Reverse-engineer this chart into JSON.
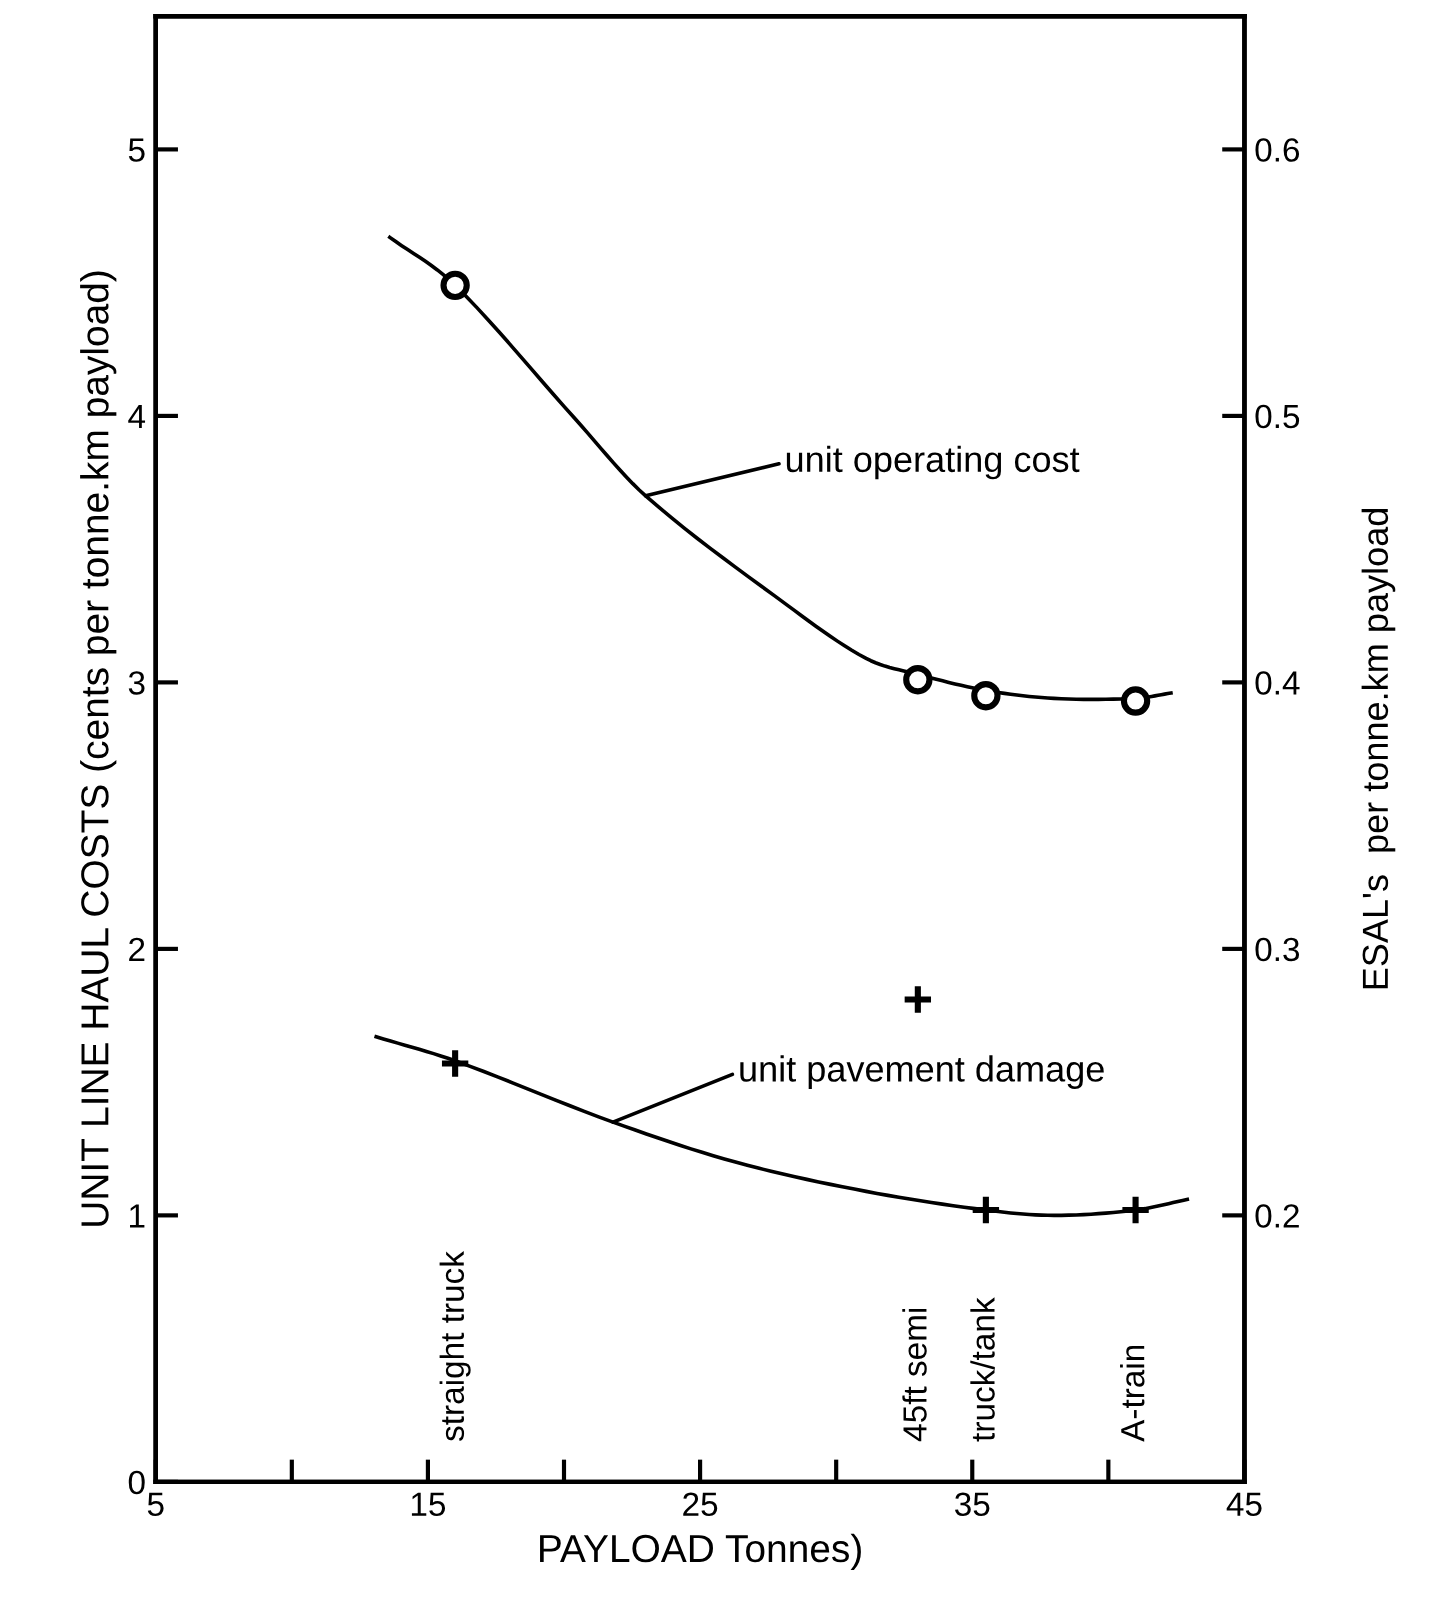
{
  "chart_data": {
    "type": "line",
    "xlabel": "PAYLOAD Tonnes)",
    "ylabel": "UNIT LINE HAUL COSTS (cents per tonne.km payload)",
    "y2label": "ESAL's  per tonne.km payload",
    "xlim": [
      5,
      45
    ],
    "xticks": [
      5,
      {
        "value": 10,
        "label": null
      },
      15,
      {
        "value": 20,
        "label": null
      },
      25,
      {
        "value": 30,
        "label": null
      },
      35,
      {
        "value": 40,
        "label": null
      },
      45
    ],
    "ylim": [
      0,
      5.5
    ],
    "yticks": [
      0,
      1,
      2,
      3,
      4,
      5
    ],
    "y2lim": [
      0.1,
      0.65
    ],
    "y2ticks": [
      0.2,
      0.3,
      0.4,
      0.5,
      0.6
    ],
    "grid": false,
    "legend": false,
    "series": [
      {
        "type": "scatter",
        "marker": "circle",
        "color": "#000000",
        "x": [
          16,
          33,
          35.5,
          41
        ],
        "values": [
          4.49,
          3.01,
          2.95,
          2.93
        ]
      },
      {
        "marker": "none",
        "color": "#000000",
        "x": [
          13.6,
          16,
          20.4,
          23.0,
          28.2,
          31.1,
          33,
          35.5,
          38.0,
          41,
          42.3
        ],
        "values": [
          4.67,
          4.49,
          3.99,
          3.7,
          3.29,
          3.09,
          3.03,
          2.97,
          2.94,
          2.94,
          2.96
        ]
      },
      {
        "type": "scatter",
        "marker": "cross",
        "color": "#000000",
        "axis": "y2",
        "x": [
          16,
          33,
          35.5,
          41
        ],
        "values": [
          0.257,
          0.281,
          0.202,
          0.202
        ]
      },
      {
        "marker": "none",
        "color": "#000000",
        "axis": "y2",
        "x": [
          13.1,
          16,
          21.8,
          26.3,
          31.1,
          35.5,
          38.0,
          41,
          42.9
        ],
        "values": [
          0.267,
          0.258,
          0.235,
          0.22,
          0.209,
          0.202,
          0.2,
          0.202,
          0.206
        ]
      }
    ],
    "annotations": [
      {
        "text": "unit operating cost",
        "x": 23.0,
        "y": 3.7
      },
      {
        "text": "unit pavement damage",
        "x": 21.8,
        "y": 1.35
      },
      "straight truck",
      "45ft semi",
      "truck/tank",
      "A-train"
    ]
  }
}
